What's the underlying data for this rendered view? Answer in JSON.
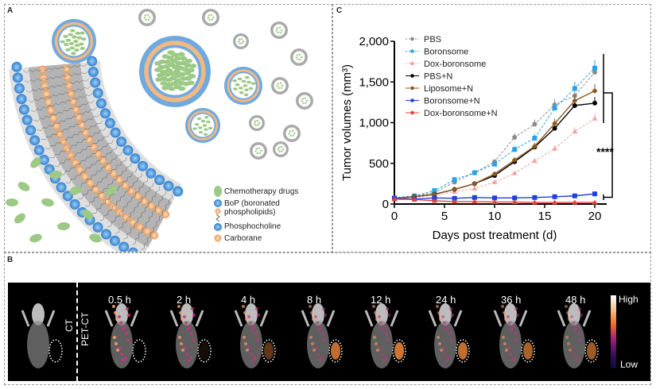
{
  "panels": {
    "a": "A",
    "b": "B",
    "c": "C"
  },
  "panel_a": {
    "legend": [
      {
        "label": "Chemotherapy drugs",
        "icon": "green-drug-ellipse",
        "color": "#8cc07a"
      },
      {
        "label": "BoP (boronated\nphospholipids)",
        "icon": "blue-headgroup-with-tails",
        "color": "#3b8fd6"
      },
      {
        "label": "Phosphocholine",
        "icon": "blue-sphere",
        "color": "#3b8fd6"
      },
      {
        "label": "Carborane",
        "icon": "orange-sphere",
        "color": "#f0b37e"
      }
    ]
  },
  "panel_b": {
    "ct_label": "CT",
    "petct_label": "PET-CT",
    "timepoints": [
      "0.5 h",
      "2 h",
      "4 h",
      "8 h",
      "12 h",
      "24 h",
      "36 h",
      "48 h"
    ],
    "colorbar": {
      "high": "High",
      "low": "Low"
    }
  },
  "chart_data": {
    "type": "line",
    "xlabel": "Days post treatment (d)",
    "ylabel": "Tumor volumes (mm³)",
    "xlim": [
      0,
      21
    ],
    "ylim": [
      0,
      2000
    ],
    "xticks": [
      "0",
      "5",
      "10",
      "15",
      "20"
    ],
    "yticks": [
      "0",
      "500",
      "1,000",
      "1,500",
      "2,000"
    ],
    "legend_position": "top-left",
    "annotation": "****",
    "x": [
      0,
      2,
      4,
      6,
      8,
      10,
      12,
      14,
      16,
      18,
      20
    ],
    "series": [
      {
        "name": "PBS",
        "color": "#8a8a8a",
        "dashed": true,
        "marker": "circle",
        "values": [
          75,
          100,
          140,
          270,
          385,
          520,
          820,
          980,
          1220,
          1330,
          1620
        ]
      },
      {
        "name": "Boronsome",
        "color": "#2aa0e8",
        "dashed": true,
        "marker": "square",
        "values": [
          75,
          100,
          165,
          300,
          385,
          490,
          670,
          810,
          1180,
          1420,
          1670
        ]
      },
      {
        "name": "Dox-boronsome",
        "color": "#f4a0a0",
        "dashed": true,
        "marker": "triangle",
        "values": [
          60,
          80,
          110,
          150,
          190,
          270,
          380,
          530,
          680,
          890,
          1050
        ]
      },
      {
        "name": "PBS+N",
        "color": "#000000",
        "dashed": false,
        "marker": "circle",
        "values": [
          70,
          90,
          120,
          180,
          250,
          350,
          520,
          700,
          930,
          1210,
          1240
        ]
      },
      {
        "name": "Liposome+N",
        "color": "#8b5a1e",
        "dashed": false,
        "marker": "diamond",
        "values": [
          70,
          90,
          120,
          180,
          250,
          370,
          540,
          710,
          990,
          1270,
          1390
        ]
      },
      {
        "name": "Boronsome+N",
        "color": "#1f3fe0",
        "dashed": false,
        "marker": "square",
        "values": [
          70,
          60,
          75,
          70,
          80,
          75,
          75,
          80,
          90,
          100,
          125
        ]
      },
      {
        "name": "Dox-boronsome+N",
        "color": "#e8403a",
        "dashed": false,
        "marker": "triangle",
        "values": [
          60,
          55,
          40,
          30,
          30,
          25,
          25,
          20,
          20,
          20,
          20
        ]
      }
    ]
  }
}
